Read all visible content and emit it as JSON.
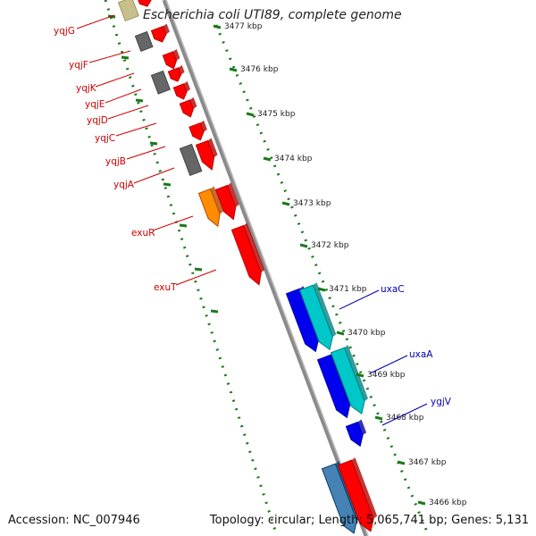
{
  "title": "Escherichia coli UTI89, complete genome",
  "footer": {
    "accession": "Accession: NC_007946",
    "summary": "Topology: circular; Length: 5,065,741 bp; Genes: 5,131"
  },
  "colors": {
    "forward_gene": "#ff0000",
    "pseudo_gray": "#666666",
    "orange_gene": "#ff8c00",
    "blue_gene": "#0000ee",
    "cyan_gene": "#00c8c8",
    "steel_gene": "#4682b4",
    "olive_gene": "#c8c08a",
    "left_label": "#cc0000",
    "right_label": "#0000aa",
    "tick_green": "#1a7a1a"
  },
  "kbp_ticks": [
    {
      "label": "3477 kbp"
    },
    {
      "label": "3476 kbp"
    },
    {
      "label": "3475 kbp"
    },
    {
      "label": "3474 kbp"
    },
    {
      "label": "3473 kbp"
    },
    {
      "label": "3472 kbp"
    },
    {
      "label": "3471 kbp"
    },
    {
      "label": "3470 kbp"
    },
    {
      "label": "3469 kbp"
    },
    {
      "label": "3468 kbp"
    },
    {
      "label": "3467 kbp"
    },
    {
      "label": "3466 kbp"
    }
  ],
  "left_genes": [
    {
      "name": "yqjG"
    },
    {
      "name": "yqjF"
    },
    {
      "name": "yqjK"
    },
    {
      "name": "yqjE"
    },
    {
      "name": "yqjD"
    },
    {
      "name": "yqjC"
    },
    {
      "name": "yqjB"
    },
    {
      "name": "yqjA"
    },
    {
      "name": "exuR"
    },
    {
      "name": "exuT"
    }
  ],
  "right_genes": [
    {
      "name": "uxaC"
    },
    {
      "name": "uxaA"
    },
    {
      "name": "ygjV"
    }
  ]
}
